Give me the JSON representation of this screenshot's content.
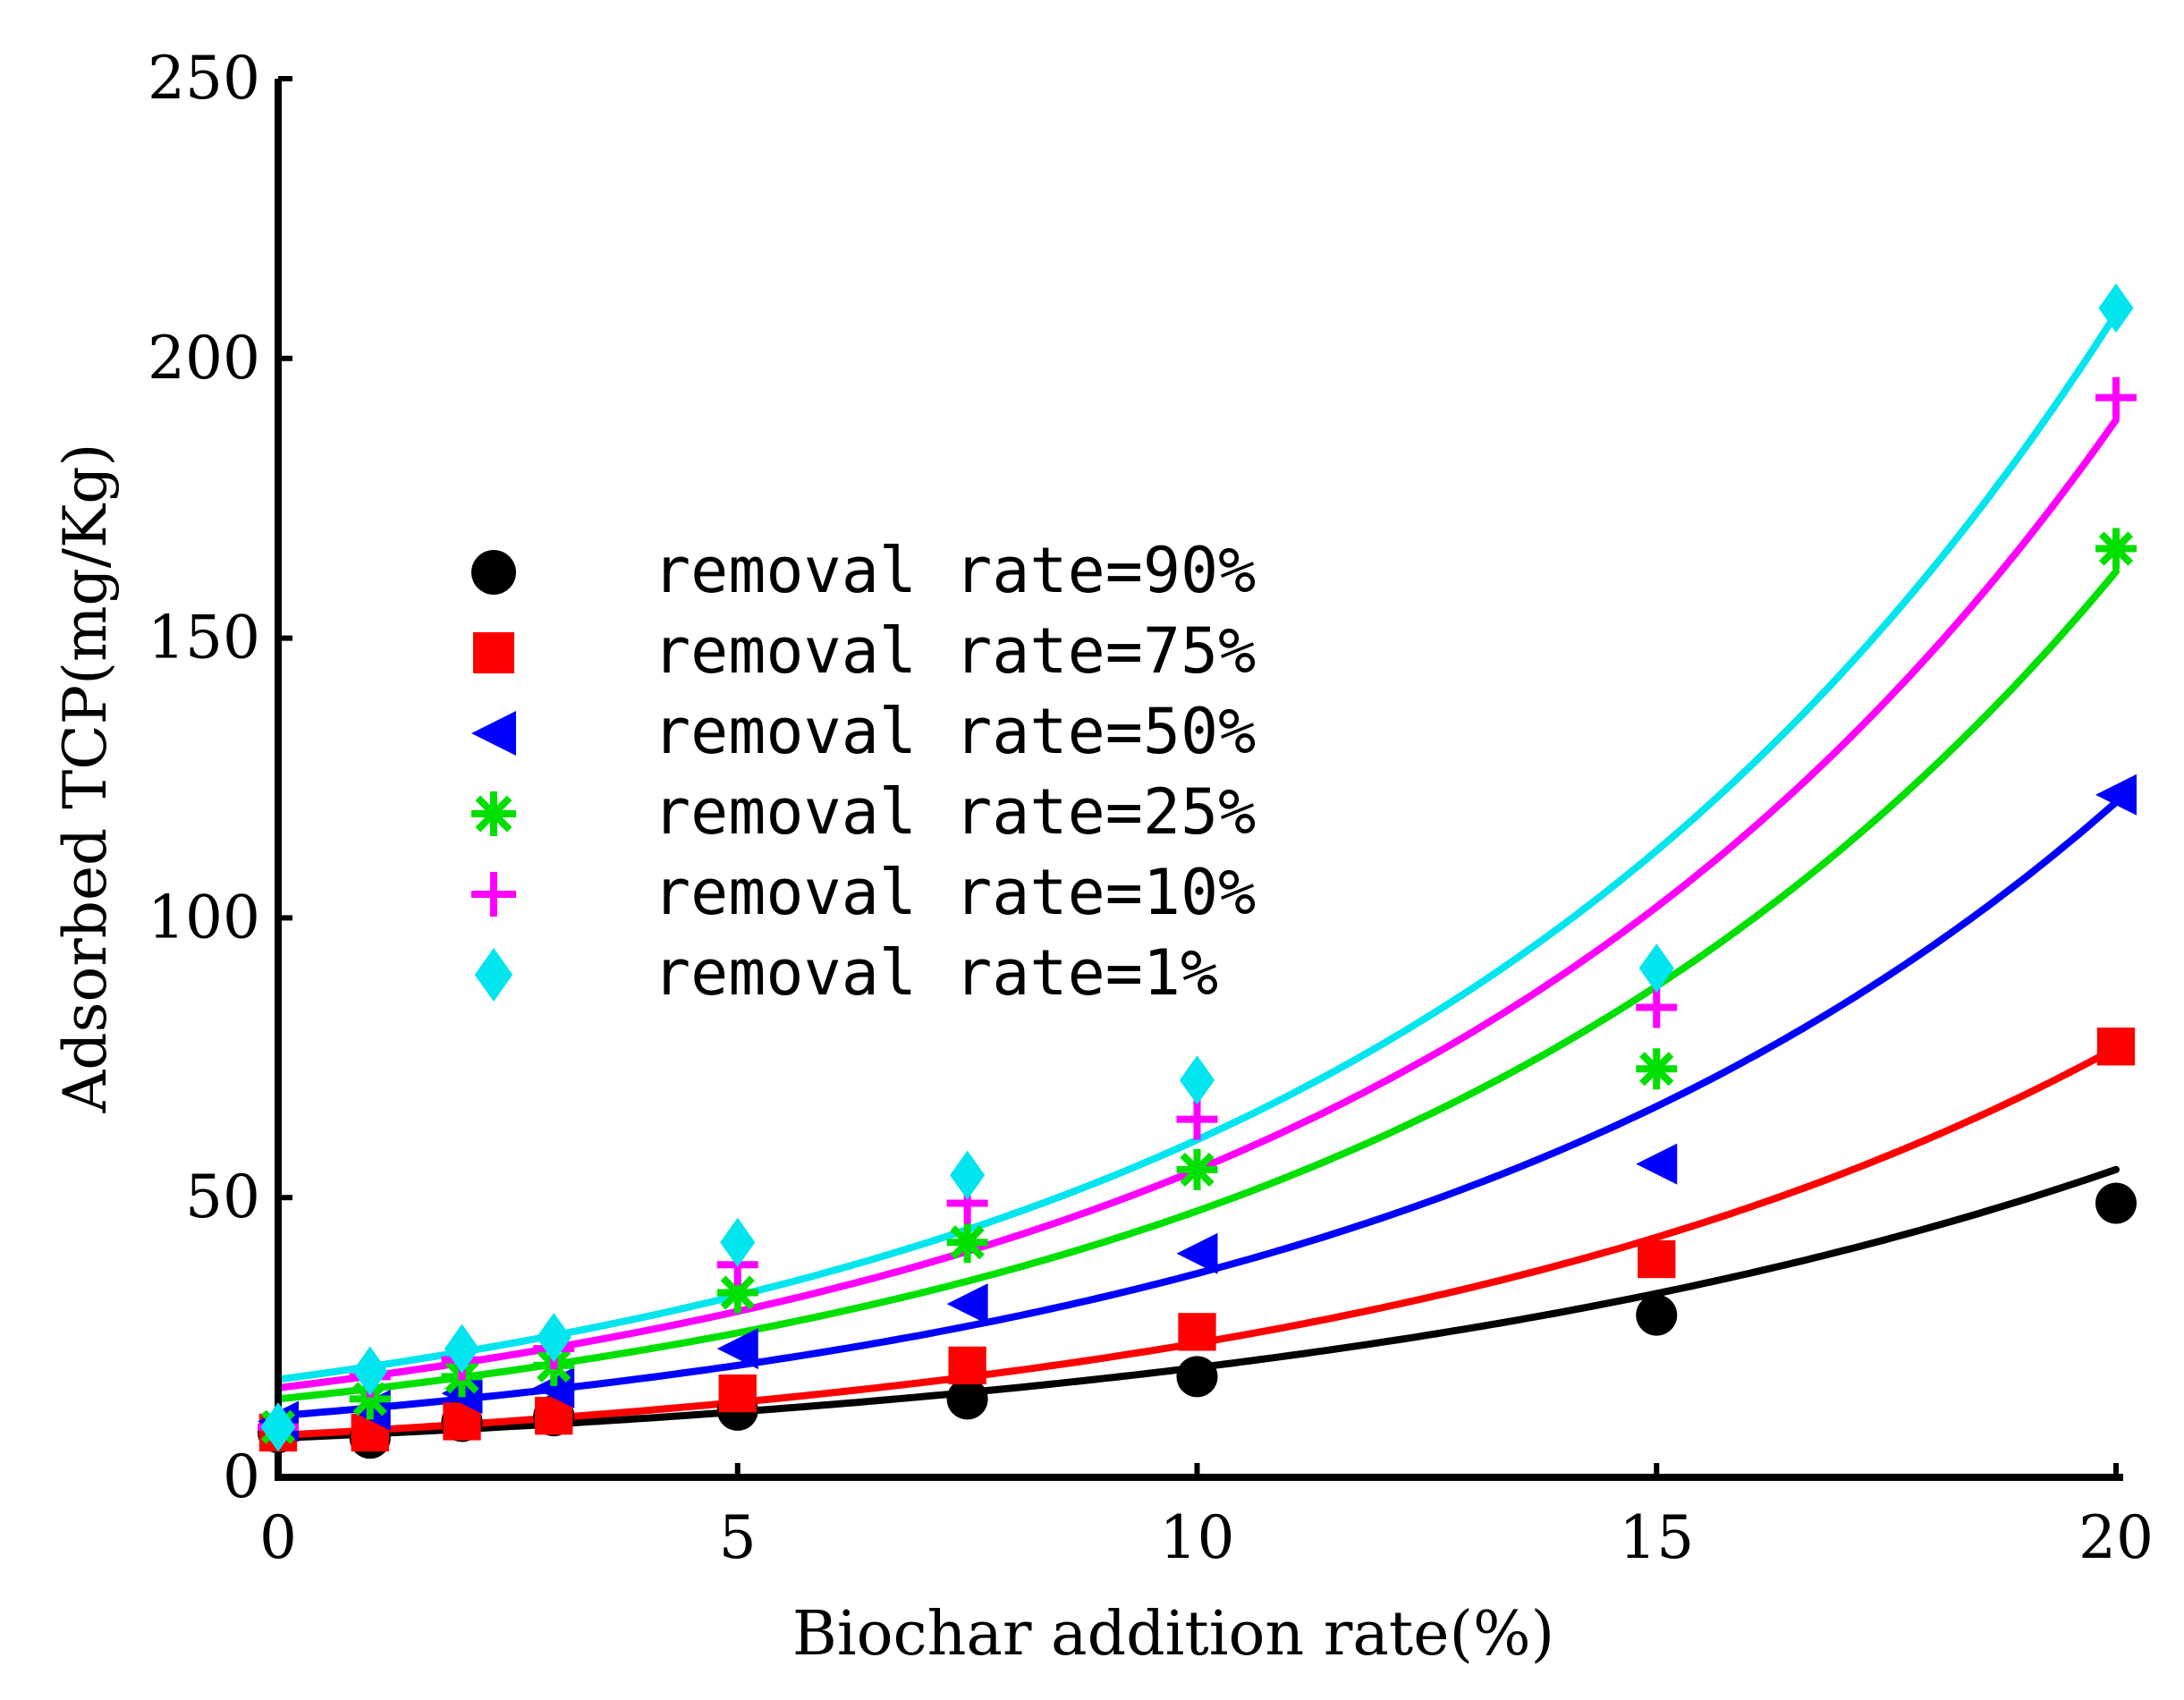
{
  "chart_data": {
    "type": "scatter",
    "title": "",
    "xlabel": "Biochar addition rate(%)",
    "ylabel": "Adsorbed TCP(mg/Kg)",
    "xlim": [
      0,
      20
    ],
    "ylim": [
      0,
      250
    ],
    "xticks": [
      0,
      5,
      10,
      15,
      20
    ],
    "yticks": [
      0,
      50,
      100,
      150,
      200,
      250
    ],
    "xtick_labels": [
      "0",
      "5",
      "10",
      "15",
      "20"
    ],
    "ytick_labels": [
      "0",
      "50",
      "100",
      "150",
      "200",
      "250"
    ],
    "grid": false,
    "legend_position": "upper-left",
    "x": [
      0,
      1,
      2,
      3,
      5,
      7.5,
      10,
      15,
      20
    ],
    "series": [
      {
        "name": "removal rate=90%",
        "marker": "circle",
        "color": "#000000",
        "values": [
          8,
          7,
          10,
          11,
          12,
          14,
          18,
          29,
          49
        ],
        "fit": {
          "a": 7.0,
          "b": 9.7
        }
      },
      {
        "name": "removal rate=75%",
        "marker": "square",
        "color": "#ff0000",
        "values": [
          8,
          8,
          10,
          11,
          15,
          20,
          26,
          39,
          77
        ],
        "fit": {
          "a": 7.5,
          "b": 8.6
        }
      },
      {
        "name": "removal rate=50%",
        "marker": "triangle-left",
        "color": "#0000ff",
        "values": [
          10,
          12,
          15,
          16,
          23,
          31,
          40,
          56,
          122
        ],
        "fit": {
          "a": 11.0,
          "b": 8.35
        }
      },
      {
        "name": "removal rate=25%",
        "marker": "asterisk",
        "color": "#00e000",
        "values": [
          9,
          14,
          18,
          20,
          33,
          42,
          55,
          73,
          166
        ],
        "fit": {
          "a": 14.0,
          "b": 8.17
        }
      },
      {
        "name": "removal rate=10%",
        "marker": "plus",
        "color": "#ff00ff",
        "values": [
          9,
          18,
          21,
          23,
          38,
          49,
          64,
          84,
          193
        ],
        "fit": {
          "a": 16.0,
          "b": 8.1
        }
      },
      {
        "name": "removal rate=1%",
        "marker": "diamond",
        "color": "#00e5ee",
        "values": [
          9,
          19,
          23,
          25,
          42,
          54,
          71,
          91,
          209
        ],
        "fit": {
          "a": 17.5,
          "b": 8.08
        }
      }
    ]
  }
}
